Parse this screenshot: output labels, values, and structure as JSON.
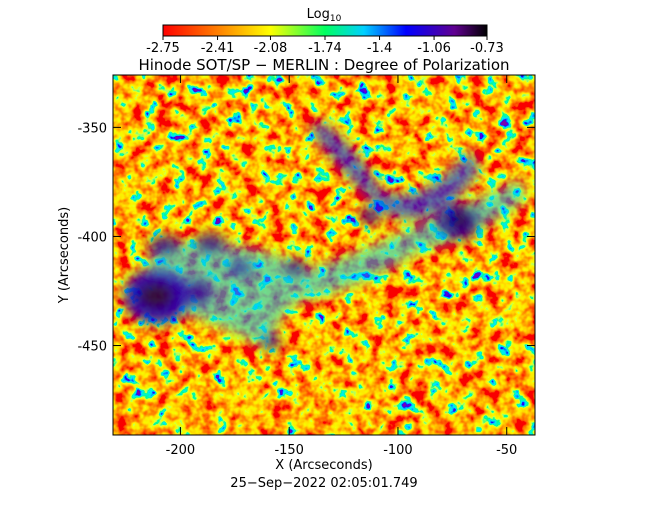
{
  "chart_data": {
    "type": "image",
    "title": "Hinode SOT/SP − MERLIN : Degree of Polarization",
    "colorbar_label": "Log",
    "colorbar_label_sub": "10",
    "colorbar_ticks": [
      -2.75,
      -2.41,
      -2.08,
      -1.74,
      -1.4,
      -1.06,
      -0.73
    ],
    "xlabel": "X (Arcseconds)",
    "ylabel": "Y (Arcseconds)",
    "date": "25−Sep−2022 02:05:01.749",
    "xlim": [
      -231,
      -37
    ],
    "xticks": [
      -200,
      -150,
      -100,
      -50
    ],
    "ylim": [
      -491,
      -326
    ],
    "yticks": [
      -350,
      -400,
      -450
    ]
  }
}
